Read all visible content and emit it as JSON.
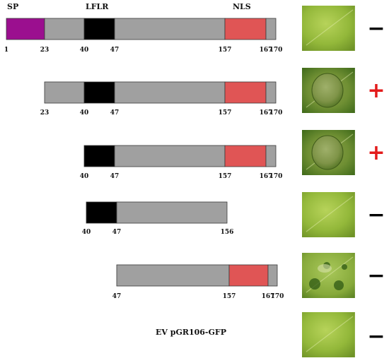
{
  "colors": {
    "sp": "#9b0f8f",
    "mid": "#a0a0a0",
    "lflr": "#000000",
    "nls": "#e05555",
    "tail": "#a0a0a0",
    "outline": "#3a3a3a",
    "positive": "#e31b1b",
    "negative": "#000000"
  },
  "headers": {
    "sp": "SP",
    "lflr": "LFLR",
    "nls": "NLS"
  },
  "constructs": [
    {
      "segments": [
        {
          "start": 1,
          "end": 23,
          "type": "sp"
        },
        {
          "start": 23,
          "end": 40,
          "type": "mid"
        },
        {
          "start": 40,
          "end": 47,
          "type": "lflr"
        },
        {
          "start": 47,
          "end": 157,
          "type": "mid"
        },
        {
          "start": 157,
          "end": 167,
          "type": "nls"
        },
        {
          "start": 167,
          "end": 170,
          "type": "tail"
        }
      ],
      "tick_labels": [
        "1",
        "23",
        "40",
        "47",
        "157",
        "167",
        "170"
      ],
      "leaf": "healthy-leaf",
      "result": "−",
      "result_type": "negative"
    },
    {
      "segments": [
        {
          "start": 23,
          "end": 40,
          "type": "mid"
        },
        {
          "start": 40,
          "end": 47,
          "type": "lflr"
        },
        {
          "start": 47,
          "end": 157,
          "type": "mid"
        },
        {
          "start": 157,
          "end": 167,
          "type": "nls"
        },
        {
          "start": 167,
          "end": 170,
          "type": "tail"
        }
      ],
      "tick_labels": [
        "23",
        "40",
        "47",
        "157",
        "167",
        "170"
      ],
      "leaf": "necrotic-leaf",
      "result": "+",
      "result_type": "positive"
    },
    {
      "segments": [
        {
          "start": 40,
          "end": 47,
          "type": "lflr"
        },
        {
          "start": 47,
          "end": 157,
          "type": "mid"
        },
        {
          "start": 157,
          "end": 167,
          "type": "nls"
        },
        {
          "start": 167,
          "end": 170,
          "type": "tail"
        }
      ],
      "tick_labels": [
        "40",
        "47",
        "157",
        "167",
        "170"
      ],
      "leaf": "necrotic-leaf",
      "result": "+",
      "result_type": "positive"
    },
    {
      "segments": [
        {
          "start": 40,
          "end": 47,
          "type": "lflr"
        },
        {
          "start": 47,
          "end": 156,
          "type": "mid"
        }
      ],
      "tick_labels": [
        "40",
        "47",
        "156"
      ],
      "leaf": "healthy-leaf",
      "result": "−",
      "result_type": "negative"
    },
    {
      "segments": [
        {
          "start": 47,
          "end": 157,
          "type": "mid"
        },
        {
          "start": 157,
          "end": 167,
          "type": "nls"
        },
        {
          "start": 167,
          "end": 170,
          "type": "tail"
        }
      ],
      "tick_labels": [
        "47",
        "157",
        "167",
        "170"
      ],
      "leaf": "spotted-leaf",
      "result": "−",
      "result_type": "negative"
    }
  ],
  "ev": {
    "label": "EV pGR106-GFP",
    "leaf": "healthy-leaf",
    "result": "−",
    "result_type": "negative"
  }
}
